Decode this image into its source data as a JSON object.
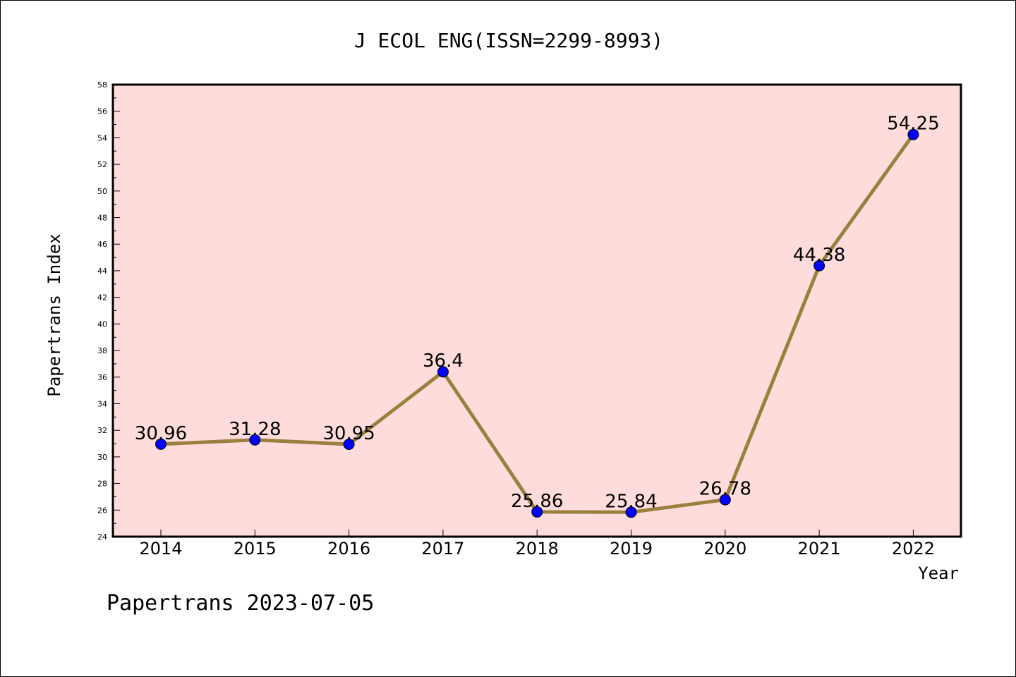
{
  "chart_data": {
    "type": "line",
    "title": "J ECOL ENG(ISSN=2299-8993)",
    "xlabel": "Year",
    "ylabel": "Papertrans Index",
    "categories": [
      "2014",
      "2015",
      "2016",
      "2017",
      "2018",
      "2019",
      "2020",
      "2021",
      "2022"
    ],
    "values": [
      30.96,
      31.28,
      30.95,
      36.4,
      25.86,
      25.84,
      26.78,
      44.38,
      54.25
    ],
    "data_labels": [
      "30.96",
      "31.28",
      "30.95",
      "36.4",
      "25.86",
      "25.84",
      "26.78",
      "44.38",
      "54.25"
    ],
    "ylim": [
      24,
      58
    ],
    "yticks": [
      24,
      26,
      28,
      30,
      32,
      34,
      36,
      38,
      40,
      42,
      44,
      46,
      48,
      50,
      52,
      54,
      56,
      58
    ],
    "grid": false,
    "colors": {
      "plot_background": "#ffdcdc",
      "line": "#9a7f3e",
      "marker": "#0000ff"
    }
  },
  "footer": {
    "text": "Papertrans 2023-07-05"
  }
}
